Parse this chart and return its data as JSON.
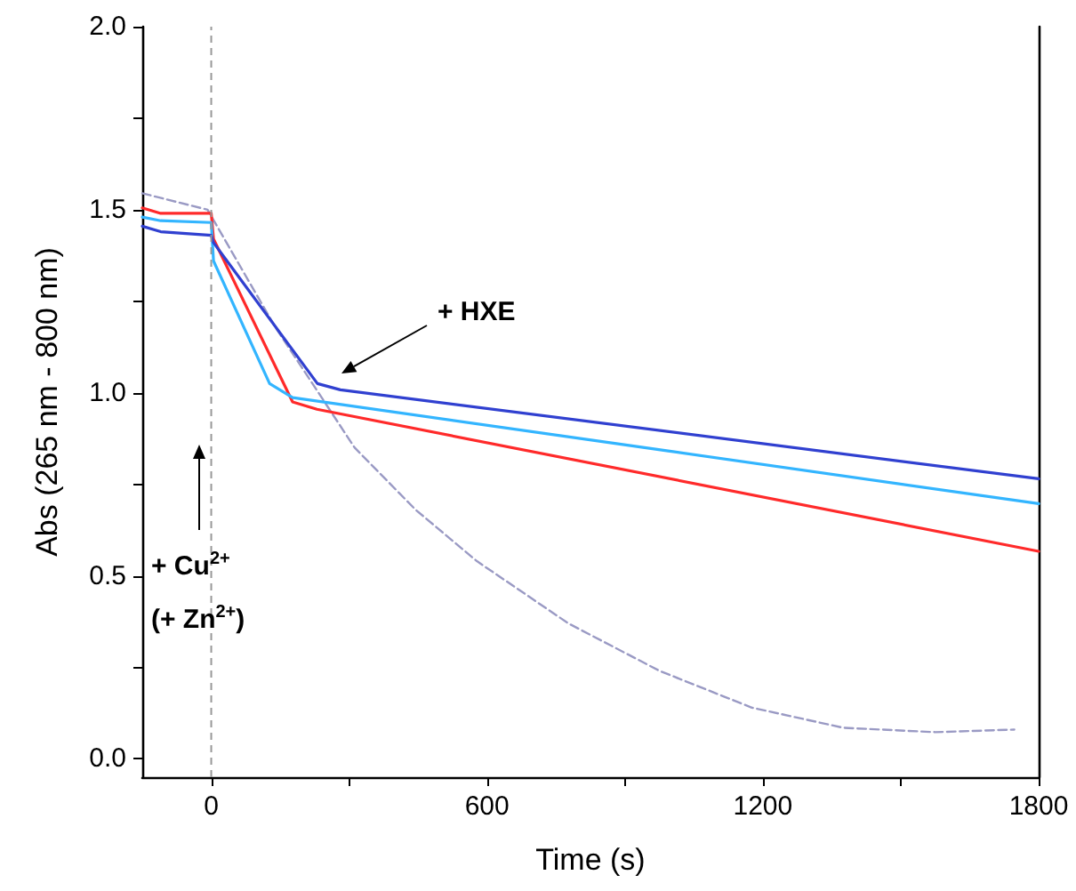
{
  "chart_data": {
    "type": "line",
    "xlabel": "Time (s)",
    "ylabel": "Abs (265 nm - 800 nm)",
    "xlim": [
      -150,
      1800
    ],
    "xticks": [
      0,
      {
        "value": 300,
        "label": null
      },
      600,
      {
        "value": 900,
        "label": null
      },
      1200,
      {
        "value": 1500,
        "label": null
      },
      1800
    ],
    "ylim": [
      -0.05,
      2.0
    ],
    "yticks": [
      {
        "value": 0,
        "label": "0.0"
      },
      {
        "value": 0.25,
        "label": null
      },
      {
        "value": 0.5,
        "label": "0.5"
      },
      {
        "value": 0.75,
        "label": null
      },
      {
        "value": 1,
        "label": "1.0"
      },
      {
        "value": 1.25,
        "label": null
      },
      {
        "value": 1.5,
        "label": "1.5"
      },
      {
        "value": 1.75,
        "label": null
      },
      {
        "value": 2,
        "label": "2.0"
      }
    ],
    "grid": false,
    "marker": "none",
    "line_style": "solid",
    "series": [
      {
        "color": "#9a9ac4",
        "line_style": "dashed",
        "x": [
          -150,
          -8,
          139,
          312,
          445,
          578,
          777,
          976,
          1176,
          1375,
          1575,
          1747
        ],
        "values": [
          1.545,
          1.5,
          1.18,
          0.85,
          0.68,
          0.54,
          0.37,
          0.24,
          0.14,
          0.085,
          0.073,
          0.08
        ]
      },
      {
        "color": "#ff2a2a",
        "x": [
          -150,
          -110,
          0,
          5,
          177,
          230,
          1800
        ],
        "values": [
          1.505,
          1.49,
          1.49,
          1.42,
          0.975,
          0.955,
          0.567
        ]
      },
      {
        "color": "#33b5ff",
        "x": [
          -150,
          -110,
          0,
          5,
          127,
          177,
          1800
        ],
        "values": [
          1.48,
          1.47,
          1.465,
          1.36,
          1.025,
          0.987,
          0.697
        ]
      },
      {
        "color": "#3040d0",
        "x": [
          -150,
          -110,
          0,
          5,
          231,
          281,
          1800
        ],
        "values": [
          1.455,
          1.44,
          1.43,
          1.41,
          1.025,
          1.008,
          0.765
        ]
      }
    ],
    "ref_lines": [
      {
        "axis": "x",
        "value": 0,
        "color": "#999999",
        "line_style": "dashed"
      }
    ],
    "annotations": [
      "+ HXE",
      "+ Cu$^{2+}$\n(+ Zn$^{2+}$)"
    ]
  }
}
